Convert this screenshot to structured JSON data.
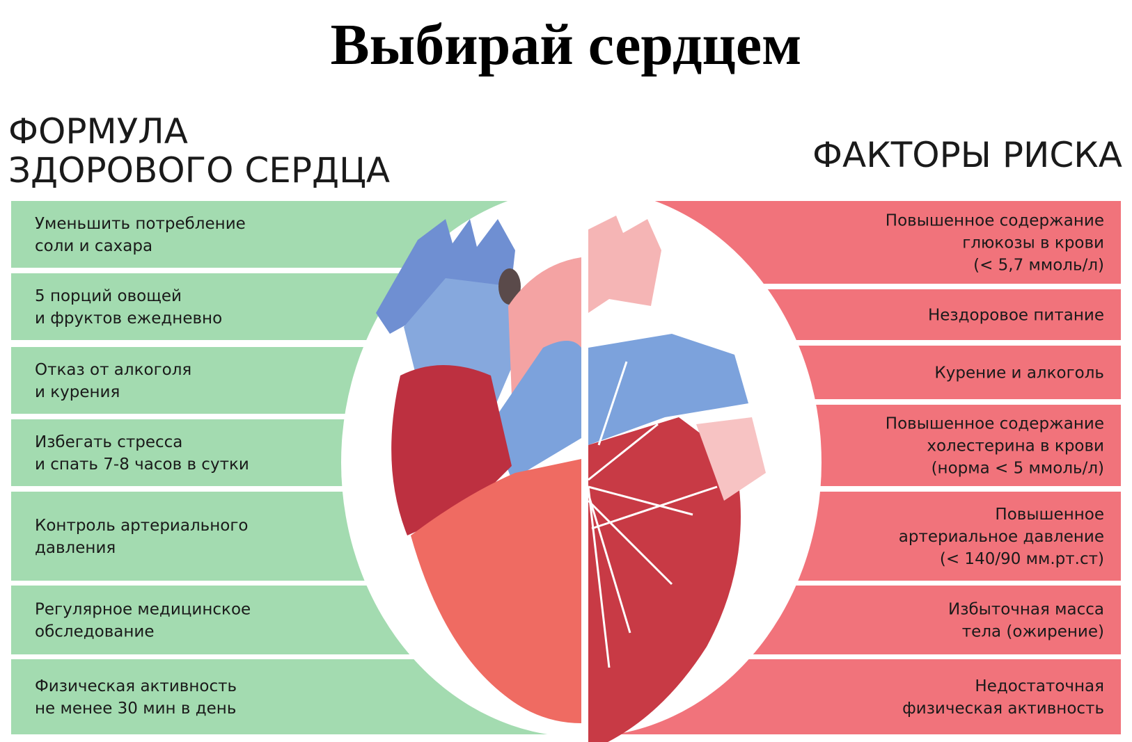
{
  "header": {
    "title": "Выбирай сердцем"
  },
  "left": {
    "heading": [
      "ФОРМУЛА",
      "ЗДОРОВОГО СЕРДЦА"
    ],
    "items": [
      [
        "Уменьшить потребление",
        "соли и сахара"
      ],
      [
        "5 порций овощей",
        "и фруктов ежедневно"
      ],
      [
        "Отказ от алкоголя",
        "и курения"
      ],
      [
        "Избегать стресса",
        "и спать 7-8 часов в сутки"
      ],
      [
        "Контроль артериального",
        "давления"
      ],
      [
        "Регулярное медицинское",
        "обследование"
      ],
      [
        "Физическая активность",
        "не менее 30 мин в день"
      ]
    ]
  },
  "right": {
    "heading": [
      "ФАКТОРЫ РИСКА"
    ],
    "items": [
      [
        "Повышенное содержание",
        "глюкозы в крови",
        "(< 5,7 ммоль/л)"
      ],
      [
        "Нездоровое питание"
      ],
      [
        "Курение и алкоголь"
      ],
      [
        "Повышенное содержание",
        "холестерина в крови",
        "(норма < 5 ммоль/л)"
      ],
      [
        "Повышенное",
        "артериальное давление",
        "(< 140/90 мм.рт.ст)"
      ],
      [
        "Избыточная масса",
        "тела (ожирение)"
      ],
      [
        "Недостаточная",
        "физическая активность"
      ]
    ]
  }
}
